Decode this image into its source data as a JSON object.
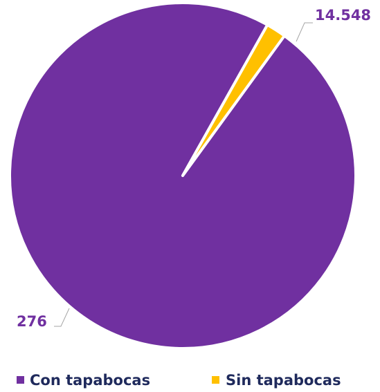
{
  "chart_data": {
    "type": "pie",
    "slices": [
      {
        "name": "Con tapabocas",
        "value": 14548,
        "label": "14.548",
        "color": "#7030a0"
      },
      {
        "name": "Sin tapabocas",
        "value": 276,
        "label": "276",
        "color": "#ffc000"
      }
    ],
    "legend": "bottom",
    "label_color": "#7030a0"
  }
}
